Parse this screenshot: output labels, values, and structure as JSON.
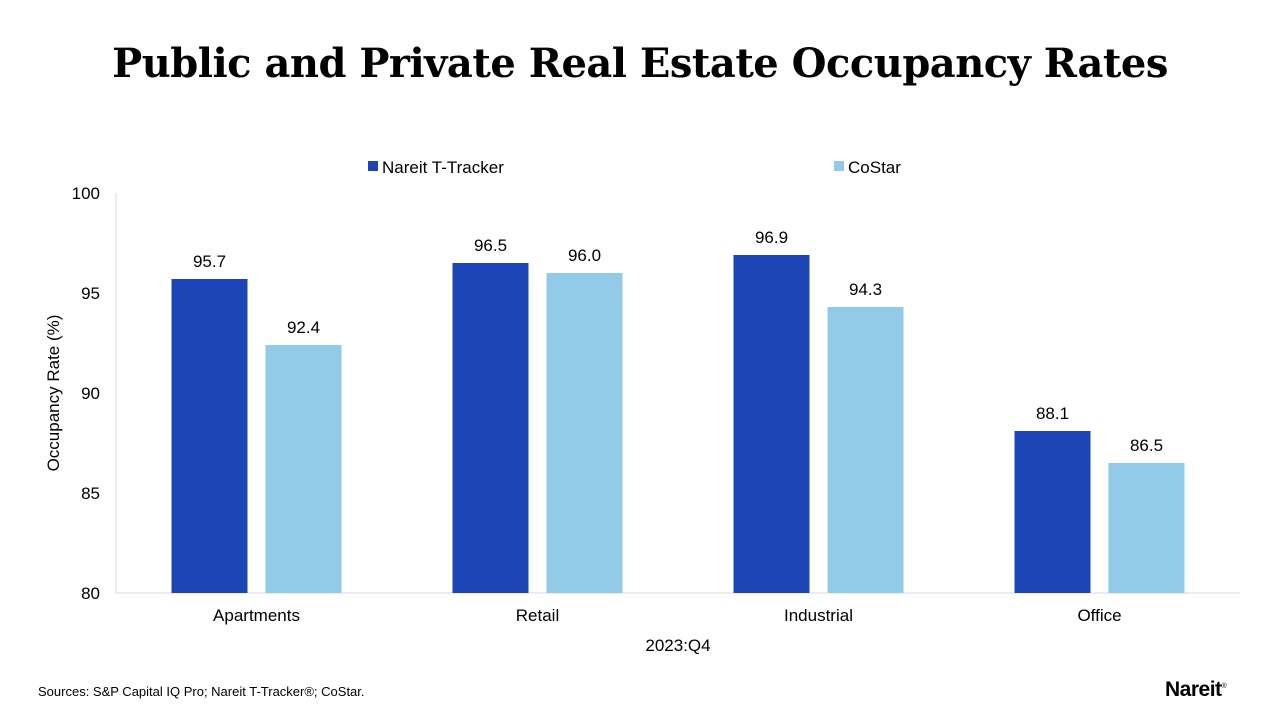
{
  "title": "Public and Private Real Estate Occupancy Rates",
  "source": "Sources: S&P Capital IQ Pro; Nareit T-Tracker®; CoStar.",
  "logo": "Nareit",
  "colors": {
    "nareit": "#1c45b8",
    "costar": "#92cbe8"
  },
  "chart_data": {
    "type": "bar",
    "categories": [
      "Apartments",
      "Retail",
      "Industrial",
      "Office"
    ],
    "series": [
      {
        "name": "Nareit T-Tracker",
        "values": [
          95.7,
          96.5,
          96.9,
          88.1
        ],
        "labels": [
          "95.7",
          "96.5",
          "96.9",
          "88.1"
        ]
      },
      {
        "name": "CoStar",
        "values": [
          92.4,
          96.0,
          94.3,
          86.5
        ],
        "labels": [
          "92.4",
          "96.0",
          "94.3",
          "86.5"
        ]
      }
    ],
    "xlabel": "2023:Q4",
    "ylabel": "Occupancy Rate (%)",
    "ylim": [
      80,
      100
    ],
    "yticks": [
      "80",
      "85",
      "90",
      "95",
      "100"
    ],
    "grid": false,
    "legend": "top"
  }
}
